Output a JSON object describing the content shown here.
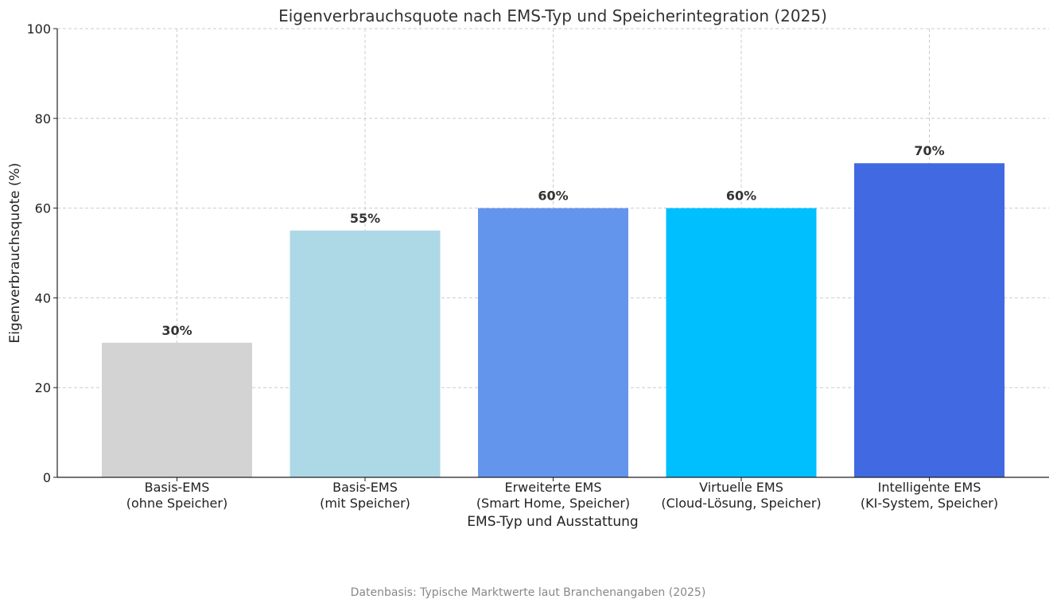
{
  "chart_data": {
    "type": "bar",
    "title": "Eigenverbrauchsquote nach EMS-Typ und Speicherintegration (2025)",
    "xlabel": "EMS-Typ und Ausstattung",
    "ylabel": "Eigenverbrauchsquote (%)",
    "ylim": [
      0,
      100
    ],
    "yticks": [
      0,
      20,
      40,
      60,
      80,
      100
    ],
    "grid": true,
    "categories": [
      [
        "Basis-EMS",
        "(ohne Speicher)"
      ],
      [
        "Basis-EMS",
        "(mit Speicher)"
      ],
      [
        "Erweiterte EMS",
        "(Smart Home, Speicher)"
      ],
      [
        "Virtuelle EMS",
        "(Cloud-Lösung, Speicher)"
      ],
      [
        "Intelligente EMS",
        "(KI-System, Speicher)"
      ]
    ],
    "values": [
      30,
      55,
      60,
      60,
      70
    ],
    "value_labels": [
      "30%",
      "55%",
      "60%",
      "60%",
      "70%"
    ],
    "colors": [
      "#d3d3d3",
      "#add8e6",
      "#6495ed",
      "#00bfff",
      "#4169e1"
    ]
  },
  "source_note": "Datenbasis: Typische Marktwerte laut Branchenangaben (2025)"
}
